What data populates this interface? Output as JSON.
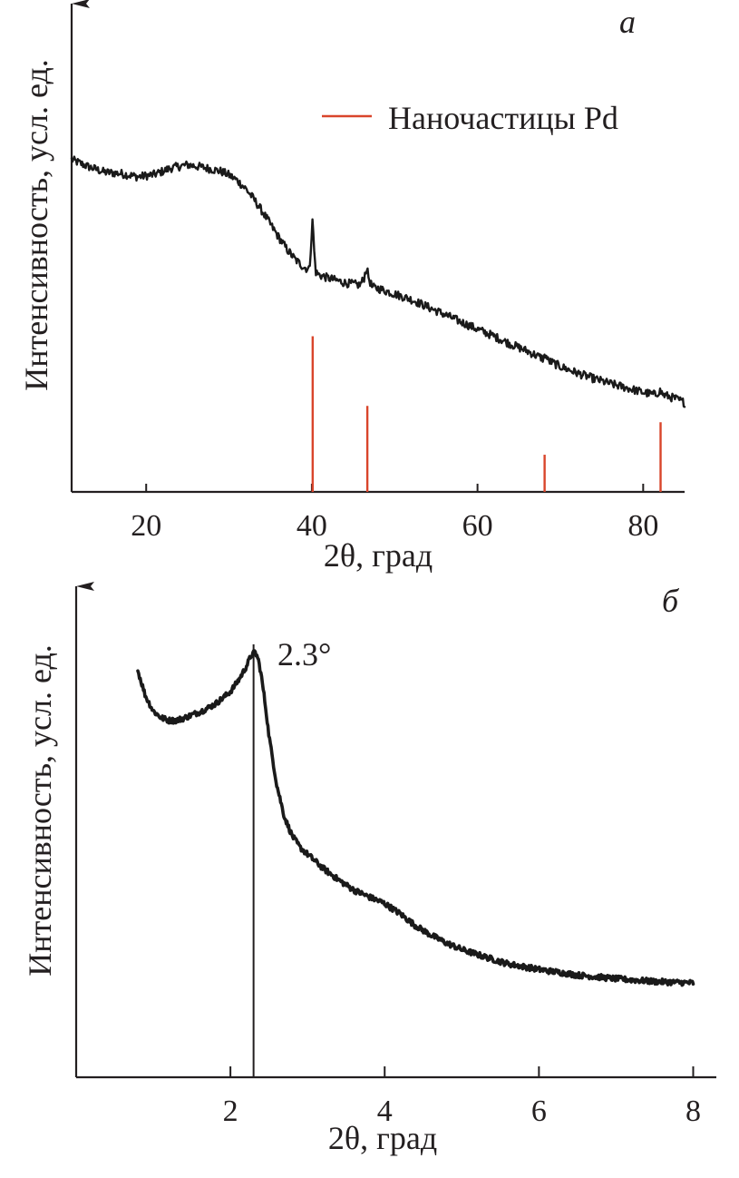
{
  "chart_data": [
    {
      "panel": "a",
      "type": "line",
      "panel_label": "а",
      "xlabel": "2θ, град",
      "ylabel": "Интенсивность, усл. ед.",
      "xlim": [
        11,
        85
      ],
      "ylim": [
        0,
        100
      ],
      "xticks": [
        20,
        40,
        60,
        80
      ],
      "yticks": [],
      "legend": {
        "position": "top-right",
        "entries": [
          {
            "label": "Наночастицы Pd",
            "color": "#d9452b"
          }
        ]
      },
      "series": [
        {
          "name": "XRD pattern",
          "color": "#1a1a1a",
          "noise": 0.9,
          "x": [
            11,
            13,
            15,
            17,
            19,
            21,
            23,
            25,
            27,
            29,
            30,
            31,
            32,
            33,
            34,
            35,
            36,
            37,
            38,
            39,
            39.7,
            39.9,
            40.1,
            40.3,
            40.5,
            41,
            42,
            44,
            45.8,
            46.3,
            46.6,
            46.9,
            47.3,
            48,
            50,
            52,
            54,
            56,
            58,
            60,
            62,
            64,
            66,
            68,
            68.2,
            68.5,
            70,
            72,
            74,
            76,
            78,
            80,
            81.5,
            82,
            82.5,
            83,
            84,
            85
          ],
          "y": [
            71.5,
            70,
            68.8,
            68.5,
            67.8,
            68.3,
            69.7,
            70.4,
            69.8,
            69,
            68.2,
            67,
            65.3,
            63,
            60.4,
            57.6,
            54.8,
            52.2,
            50,
            48.4,
            47.8,
            53,
            59,
            51,
            47.2,
            46.6,
            46,
            45,
            44.5,
            46,
            48.3,
            45.8,
            44,
            43.8,
            42.6,
            41.4,
            39.8,
            38.2,
            36.6,
            35,
            33.5,
            31.8,
            30.3,
            28.6,
            29.6,
            28.3,
            27,
            25.6,
            24.4,
            23.3,
            22.4,
            21.4,
            20.9,
            21.8,
            20.8,
            20.6,
            20,
            19.2
          ]
        }
      ],
      "reference_lines": {
        "name": "Наночастицы Pd",
        "color": "#d9452b",
        "x": [
          40.1,
          46.7,
          68.1,
          82.1
        ],
        "values": [
          33.5,
          18.5,
          8,
          15
        ]
      }
    },
    {
      "panel": "б",
      "type": "line",
      "panel_label": "б",
      "xlabel": "2θ, град",
      "ylabel": "Интенсивность, усл. ед.",
      "xlim": [
        0,
        8.3
      ],
      "ylim": [
        0,
        100
      ],
      "xticks": [
        2,
        4,
        6,
        8
      ],
      "yticks": [],
      "annotation": {
        "text": "2.3°",
        "x": 2.3
      },
      "series": [
        {
          "name": "SAXS pattern",
          "color": "#111111",
          "noise": 0.6,
          "x": [
            0.8,
            0.9,
            1.0,
            1.1,
            1.2,
            1.3,
            1.4,
            1.5,
            1.6,
            1.7,
            1.8,
            1.9,
            2.0,
            2.1,
            2.2,
            2.27,
            2.32,
            2.36,
            2.4,
            2.45,
            2.5,
            2.6,
            2.7,
            2.8,
            2.9,
            3.0,
            3.2,
            3.4,
            3.6,
            3.8,
            4.0,
            4.2,
            4.4,
            4.6,
            4.8,
            5.0,
            5.3,
            5.6,
            6.0,
            6.5,
            7.0,
            7.5,
            8.0
          ],
          "y": [
            87.5,
            82,
            78.8,
            77.4,
            76.8,
            76.8,
            77.3,
            78,
            78.6,
            79.4,
            80.3,
            81.6,
            83,
            85.3,
            88.2,
            90.8,
            91.5,
            90,
            86.5,
            80.5,
            73.5,
            63,
            56,
            52,
            49.5,
            48,
            45,
            42.5,
            40.3,
            38.8,
            37.4,
            35.2,
            32.6,
            30.6,
            28.9,
            27.5,
            25.9,
            24.4,
            23.2,
            22,
            21.2,
            20.6,
            20.3
          ]
        }
      ]
    }
  ]
}
